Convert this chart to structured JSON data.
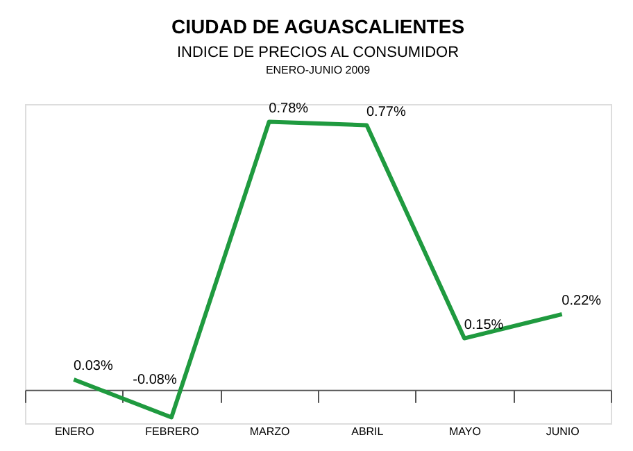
{
  "chart_data": {
    "type": "line",
    "title": "CIUDAD DE AGUASCALIENTES",
    "subtitle": "INDICE DE PRECIOS AL CONSUMIDOR",
    "annotations": [
      "ENERO-JUNIO 2009"
    ],
    "categories": [
      "ENERO",
      "FEBRERO",
      "MARZO",
      "ABRIL",
      "MAYO",
      "JUNIO"
    ],
    "series": [
      {
        "color": "#1f9a3f",
        "values": [
          0.03,
          -0.08,
          0.78,
          0.77,
          0.15,
          0.22
        ],
        "value_labels": [
          "0.03%",
          "-0.08%",
          "0.78%",
          "0.77%",
          "0.15%",
          "0.22%"
        ]
      }
    ],
    "grid": false,
    "marker": "none",
    "line_style": "solid"
  }
}
